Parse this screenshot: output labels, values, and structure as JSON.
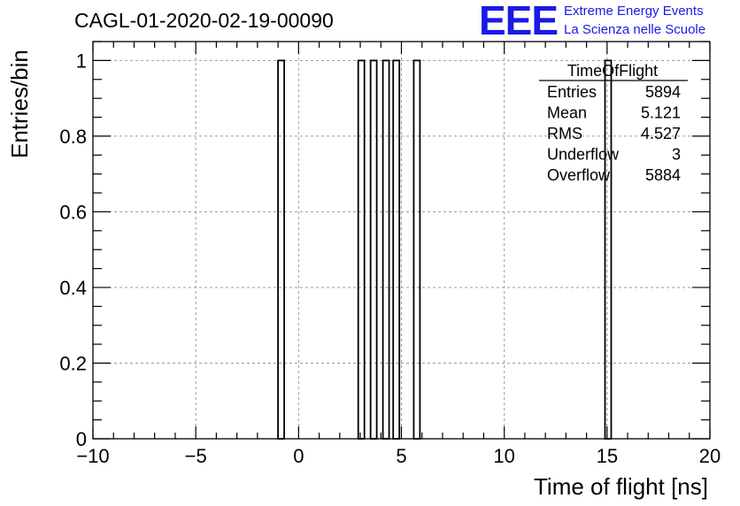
{
  "title": "CAGL-01-2020-02-19-00090",
  "logo": {
    "mark": "EEE",
    "line1": "Extreme Energy Events",
    "line2": "La Scienza nelle Scuole",
    "color": "#1a1ae6"
  },
  "stats": {
    "header": "TimeOfFlight",
    "rows": [
      {
        "label": "Entries",
        "value": "5894"
      },
      {
        "label": "Mean",
        "value": "5.121"
      },
      {
        "label": "RMS",
        "value": "4.527"
      },
      {
        "label": "Underflow",
        "value": "3"
      },
      {
        "label": "Overflow",
        "value": "5884"
      }
    ]
  },
  "chart_data": {
    "type": "bar",
    "xlabel": "Time of flight [ns]",
    "ylabel": "Entries/bin",
    "xlim": [
      -10,
      20
    ],
    "ylim": [
      0,
      1.05
    ],
    "xticks": [
      -10,
      -5,
      0,
      5,
      10,
      15,
      20
    ],
    "xtick_labels": [
      "−10",
      "−5",
      "0",
      "5",
      "10",
      "15",
      "20"
    ],
    "yticks": [
      0,
      0.2,
      0.4,
      0.6,
      0.8,
      1
    ],
    "ytick_labels": [
      "0",
      "0.2",
      "0.4",
      "0.6",
      "0.8",
      "1"
    ],
    "grid": true,
    "bin_width": 0.3,
    "bins": [
      {
        "x0": -1.0,
        "x1": -0.7,
        "value": 1
      },
      {
        "x0": 2.9,
        "x1": 3.2,
        "value": 1
      },
      {
        "x0": 3.5,
        "x1": 3.8,
        "value": 1
      },
      {
        "x0": 4.1,
        "x1": 4.4,
        "value": 1
      },
      {
        "x0": 4.6,
        "x1": 4.9,
        "value": 1
      },
      {
        "x0": 5.6,
        "x1": 5.9,
        "value": 1
      },
      {
        "x0": 14.9,
        "x1": 15.2,
        "value": 1
      }
    ]
  }
}
